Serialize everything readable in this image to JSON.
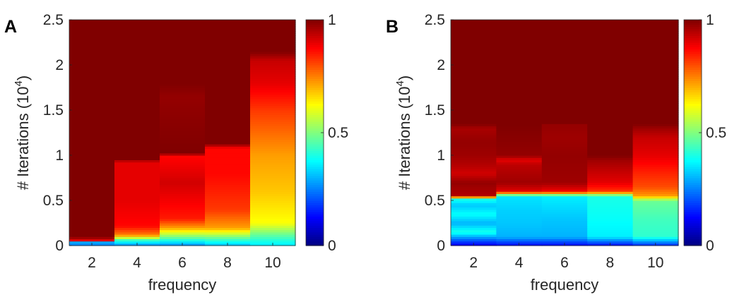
{
  "chart_data": [
    {
      "type": "heatmap",
      "panel_label": "A",
      "xlabel": "frequency",
      "ylabel": "# Iterations (10",
      "ylabel_exp": "4",
      "ylabel_close": ")",
      "x": [
        2,
        3,
        4,
        5,
        6,
        7,
        8,
        9,
        10,
        11
      ],
      "x_ticks": [
        "2",
        "4",
        "6",
        "8",
        "10"
      ],
      "x_tick_values": [
        2,
        4,
        6,
        8,
        10
      ],
      "xlim": [
        1,
        11
      ],
      "ylim": [
        0,
        2.5
      ],
      "y_ticks": [
        "0",
        "0.5",
        "1",
        "1.5",
        "2",
        "2.5"
      ],
      "y_tick_values": [
        0,
        0.5,
        1,
        1.5,
        2,
        2.5
      ],
      "colorbar": {
        "colormap": "jet",
        "range": [
          0,
          1
        ],
        "ticks": [
          "0",
          "0.5",
          "1"
        ],
        "tick_values": [
          0,
          0.5,
          1
        ]
      },
      "columns": [
        {
          "x_range": [
            1,
            3
          ],
          "stops": [
            [
              0,
              0.25
            ],
            [
              0.05,
              0.3
            ],
            [
              0.06,
              0.9
            ],
            [
              0.1,
              1.0
            ]
          ]
        },
        {
          "x_range": [
            3,
            5
          ],
          "stops": [
            [
              0,
              0.25
            ],
            [
              0.06,
              0.42
            ],
            [
              0.12,
              0.75
            ],
            [
              0.22,
              0.87
            ],
            [
              0.5,
              0.9
            ],
            [
              0.93,
              0.9
            ],
            [
              0.95,
              1.0
            ]
          ]
        },
        {
          "x_range": [
            5,
            7
          ],
          "stops": [
            [
              0,
              0.25
            ],
            [
              0.08,
              0.45
            ],
            [
              0.2,
              0.72
            ],
            [
              0.3,
              0.85
            ],
            [
              0.7,
              0.92
            ],
            [
              1.0,
              0.87
            ],
            [
              1.02,
              1.0
            ],
            [
              1.65,
              0.98
            ],
            [
              1.8,
              1.0
            ]
          ]
        },
        {
          "x_range": [
            7,
            9
          ],
          "stops": [
            [
              0,
              0.3
            ],
            [
              0.1,
              0.5
            ],
            [
              0.2,
              0.72
            ],
            [
              0.4,
              0.82
            ],
            [
              0.8,
              0.87
            ],
            [
              1.08,
              0.87
            ],
            [
              1.13,
              1.0
            ]
          ]
        },
        {
          "x_range": [
            9,
            11
          ],
          "stops": [
            [
              0,
              0.35
            ],
            [
              0.1,
              0.45
            ],
            [
              0.25,
              0.62
            ],
            [
              0.6,
              0.68
            ],
            [
              1.0,
              0.72
            ],
            [
              1.5,
              0.82
            ],
            [
              1.8,
              0.9
            ],
            [
              2.05,
              0.93
            ],
            [
              2.15,
              1.0
            ]
          ]
        }
      ]
    },
    {
      "type": "heatmap",
      "panel_label": "B",
      "xlabel": "frequency",
      "ylabel": "# Iterations (10",
      "ylabel_exp": "4",
      "ylabel_close": ")",
      "x": [
        2,
        3,
        4,
        5,
        6,
        7,
        8,
        9,
        10,
        11
      ],
      "x_ticks": [
        "2",
        "4",
        "6",
        "8",
        "10"
      ],
      "x_tick_values": [
        2,
        4,
        6,
        8,
        10
      ],
      "xlim": [
        1,
        11
      ],
      "ylim": [
        0,
        2.5
      ],
      "y_ticks": [
        "0",
        "0.5",
        "1",
        "1.5",
        "2",
        "2.5"
      ],
      "y_tick_values": [
        0,
        0.5,
        1,
        1.5,
        2,
        2.5
      ],
      "colorbar": {
        "colormap": "jet",
        "range": [
          0,
          1
        ],
        "ticks": [
          "0",
          "0.5",
          "1"
        ],
        "tick_values": [
          0,
          0.5,
          1
        ]
      },
      "columns": [
        {
          "x_range": [
            1,
            3
          ],
          "stops": [
            [
              0,
              0.1
            ],
            [
              0.08,
              0.25
            ],
            [
              0.15,
              0.4
            ],
            [
              0.25,
              0.3
            ],
            [
              0.35,
              0.38
            ],
            [
              0.45,
              0.32
            ],
            [
              0.52,
              0.4
            ],
            [
              0.55,
              0.95
            ],
            [
              0.7,
              0.98
            ],
            [
              0.8,
              0.92
            ],
            [
              0.9,
              0.95
            ],
            [
              1.0,
              0.97
            ],
            [
              1.15,
              0.98
            ],
            [
              1.3,
              0.96
            ],
            [
              1.35,
              1.0
            ]
          ]
        },
        {
          "x_range": [
            3,
            5
          ],
          "stops": [
            [
              0,
              0.12
            ],
            [
              0.1,
              0.3
            ],
            [
              0.25,
              0.32
            ],
            [
              0.4,
              0.33
            ],
            [
              0.55,
              0.35
            ],
            [
              0.6,
              0.9
            ],
            [
              0.7,
              0.97
            ],
            [
              0.9,
              0.94
            ],
            [
              0.95,
              0.9
            ],
            [
              1.0,
              0.98
            ],
            [
              1.35,
              1.0
            ]
          ]
        },
        {
          "x_range": [
            5,
            7
          ],
          "stops": [
            [
              0,
              0.12
            ],
            [
              0.1,
              0.3
            ],
            [
              0.3,
              0.32
            ],
            [
              0.55,
              0.36
            ],
            [
              0.6,
              0.88
            ],
            [
              0.7,
              0.97
            ],
            [
              1.0,
              0.98
            ],
            [
              1.2,
              0.97
            ],
            [
              1.35,
              0.98
            ],
            [
              1.36,
              1.0
            ]
          ]
        },
        {
          "x_range": [
            7,
            9
          ],
          "stops": [
            [
              0,
              0.12
            ],
            [
              0.1,
              0.36
            ],
            [
              0.3,
              0.38
            ],
            [
              0.55,
              0.4
            ],
            [
              0.6,
              0.82
            ],
            [
              0.7,
              0.9
            ],
            [
              0.85,
              0.94
            ],
            [
              0.95,
              0.97
            ],
            [
              1.0,
              1.0
            ]
          ]
        },
        {
          "x_range": [
            9,
            11
          ],
          "stops": [
            [
              0,
              0.15
            ],
            [
              0.1,
              0.42
            ],
            [
              0.3,
              0.44
            ],
            [
              0.5,
              0.48
            ],
            [
              0.55,
              0.72
            ],
            [
              0.65,
              0.8
            ],
            [
              0.8,
              0.84
            ],
            [
              1.0,
              0.9
            ],
            [
              1.2,
              0.93
            ],
            [
              1.3,
              0.97
            ],
            [
              1.35,
              1.0
            ]
          ]
        }
      ]
    }
  ]
}
